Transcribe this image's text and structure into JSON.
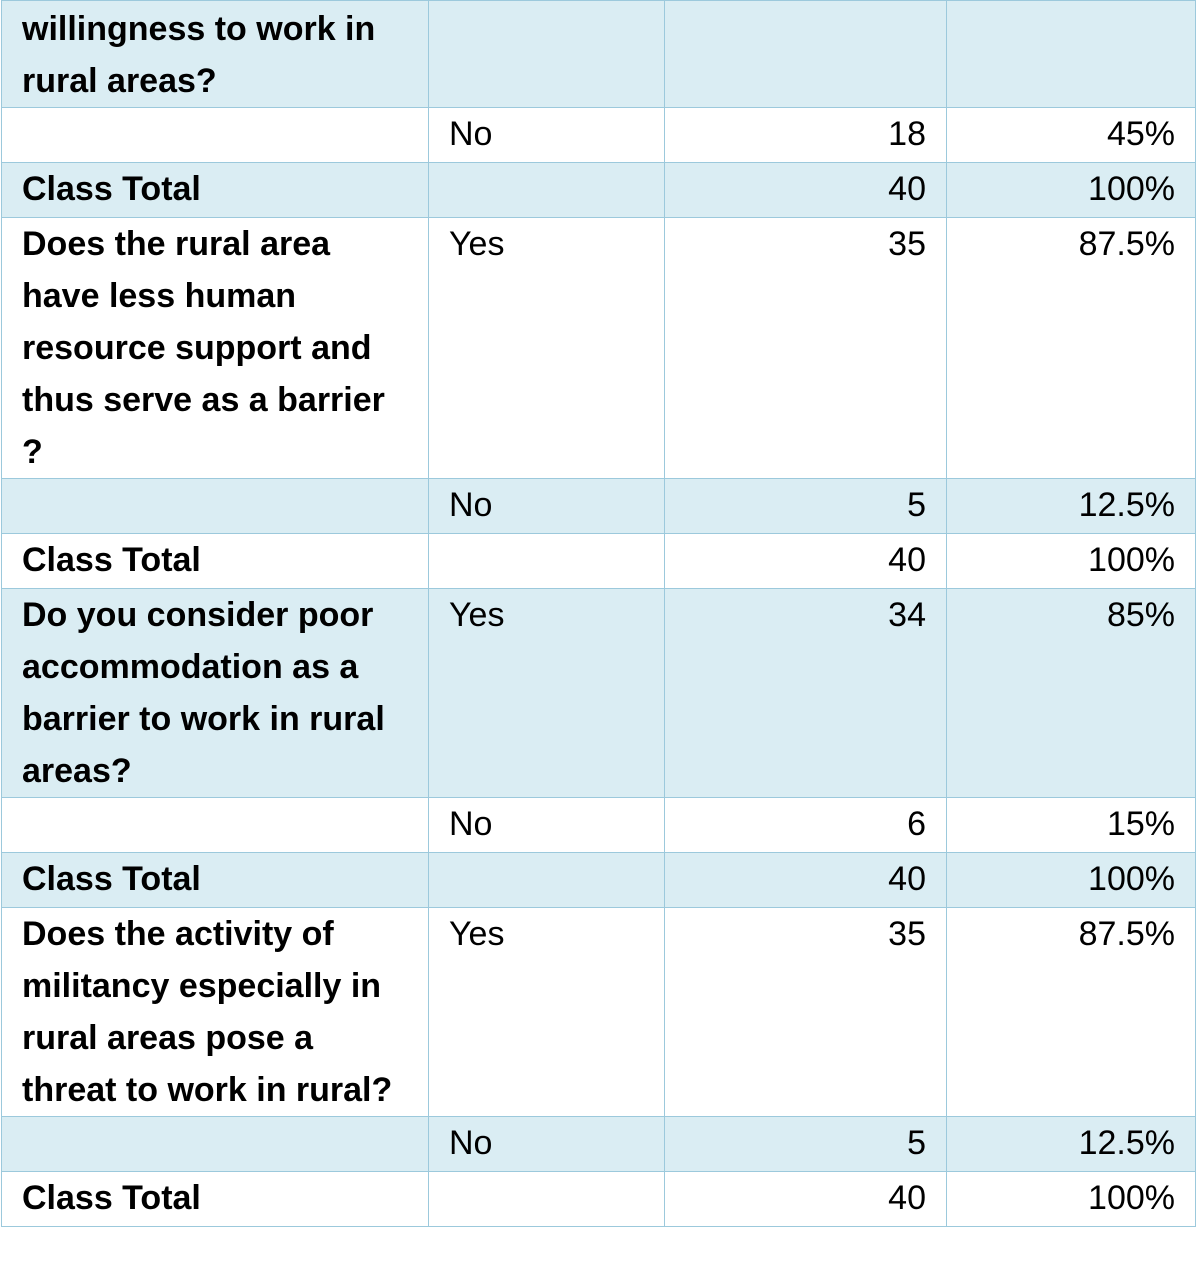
{
  "rows": [
    {
      "question": "willingness to work in rural areas?",
      "answer": "",
      "count": "",
      "percent": "",
      "shade": true
    },
    {
      "question": "",
      "answer": "No",
      "count": "18",
      "percent": "45%",
      "shade": false
    },
    {
      "question": "Class Total",
      "answer": "",
      "count": "40",
      "percent": "100%",
      "shade": true
    },
    {
      "question": "Does the rural area have less human resource support and thus serve as a barrier ?",
      "answer": "Yes",
      "count": "35",
      "percent": "87.5%",
      "shade": false
    },
    {
      "question": "",
      "answer": "No",
      "count": "5",
      "percent": "12.5%",
      "shade": true
    },
    {
      "question": "Class Total",
      "answer": "",
      "count": "40",
      "percent": "100%",
      "shade": false
    },
    {
      "question": "Do you consider poor accommodation as a barrier to work in rural areas?",
      "answer": "Yes",
      "count": "34",
      "percent": "85%",
      "shade": true
    },
    {
      "question": "",
      "answer": "No",
      "count": "6",
      "percent": "15%",
      "shade": false
    },
    {
      "question": "Class Total",
      "answer": "",
      "count": "40",
      "percent": "100%",
      "shade": true
    },
    {
      "question": "Does the activity of militancy especially in rural areas pose a threat to work in rural?",
      "answer": "Yes",
      "count": "35",
      "percent": "87.5%",
      "shade": false
    },
    {
      "question": "",
      "answer": "No",
      "count": "5",
      "percent": "12.5%",
      "shade": true
    },
    {
      "question": "Class Total",
      "answer": "",
      "count": "40",
      "percent": "100%",
      "shade": false
    }
  ],
  "colors": {
    "shade": "#daedf3",
    "border": "#9cc9dc"
  }
}
